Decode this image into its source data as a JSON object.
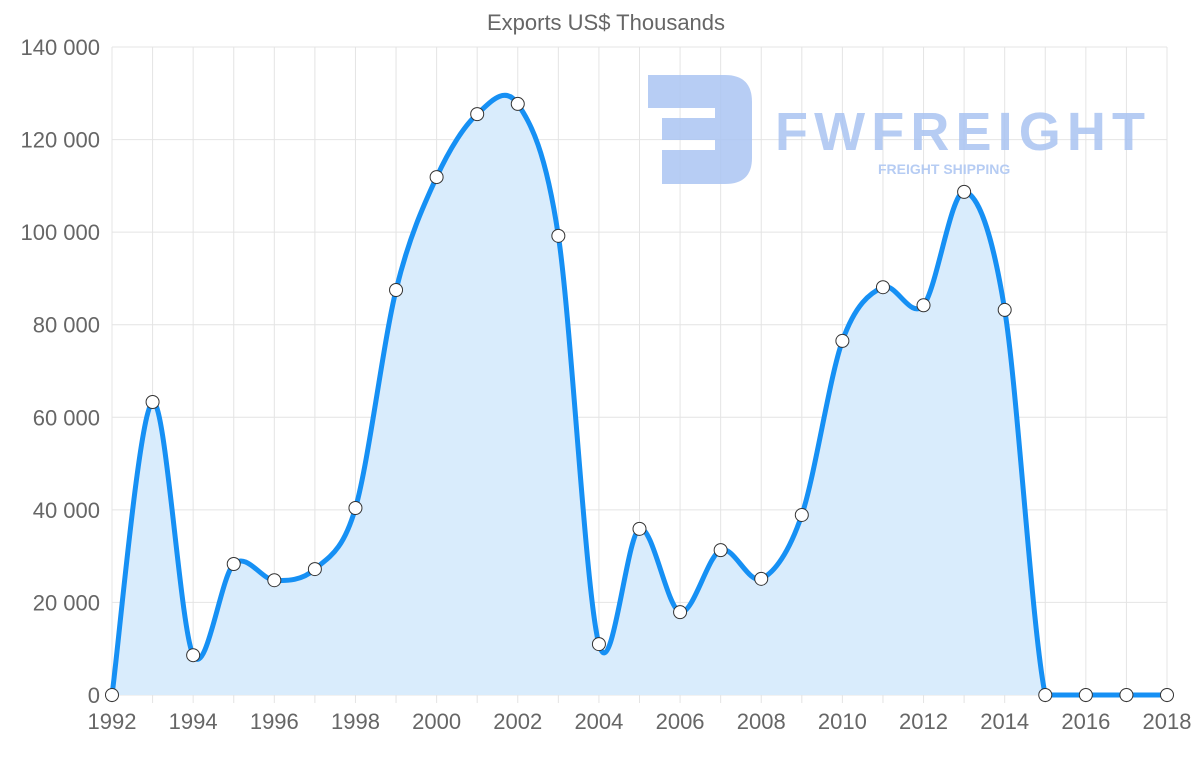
{
  "chart_data": {
    "type": "line",
    "title": "Exports US$ Thousands",
    "xlabel": "",
    "ylabel": "",
    "x": [
      1992,
      1993,
      1994,
      1995,
      1996,
      1997,
      1998,
      1999,
      2000,
      2001,
      2002,
      2003,
      2004,
      2005,
      2006,
      2007,
      2008,
      2009,
      2010,
      2011,
      2012,
      2013,
      2014,
      2015,
      2016,
      2017,
      2018
    ],
    "series": [
      {
        "name": "Exports US$ Thousands",
        "values": [
          0,
          63300,
          8600,
          28300,
          24800,
          27200,
          40400,
          87500,
          111900,
          125500,
          127700,
          99200,
          11000,
          35900,
          17900,
          31300,
          25100,
          38900,
          76500,
          88100,
          84200,
          108700,
          83200,
          0,
          0,
          0,
          0
        ]
      }
    ],
    "ylim": [
      0,
      140000
    ],
    "yticks": [
      "0",
      "20 000",
      "40 000",
      "60 000",
      "80 000",
      "100 000",
      "120 000",
      "140 000"
    ],
    "xticks": [
      "1992",
      "1994",
      "1996",
      "1998",
      "2000",
      "2002",
      "2004",
      "2006",
      "2008",
      "2010",
      "2012",
      "2014",
      "2016",
      "2018"
    ],
    "grid": true,
    "area_fill": true,
    "colors": {
      "line": "#1690f4",
      "fill": "#d9ecfc",
      "grid": "#e4e4e4",
      "text": "#666666",
      "watermark": "#aac4f2"
    }
  },
  "watermark": {
    "brand": "FWFREIGHT",
    "tagline": "FREIGHT SHIPPING"
  }
}
